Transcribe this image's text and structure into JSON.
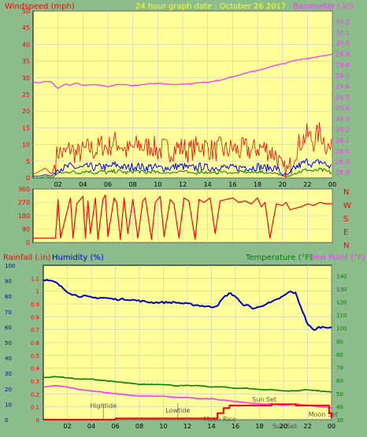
{
  "colors": {
    "page_bg": "#8cbb8c",
    "plot_bg": "#ffff99",
    "grid": "#c8c8c8",
    "wind_speed": "#ff0000",
    "wind_avg": "#0000ff",
    "wind_low": "#008000",
    "barometer": "#ff33ff",
    "direction": "#ff0000",
    "humidity": "#0000cc",
    "temperature": "#008000",
    "dewpoint": "#ff33ff",
    "rainfall": "#ff0000",
    "left_axis_label": "#ff0000",
    "title": "#ffff33",
    "humidity_label": "#0000cc",
    "temp_label": "#008000",
    "dew_label": "#ff33ff",
    "tide_text": "#555555"
  },
  "panels": {
    "wind": {
      "left_label": "Windspeed (mph)",
      "title": "24 hour graph date : October 26 2017",
      "right_label": "Barometer (.in)"
    },
    "direction": {
      "compass": [
        "N",
        "W",
        "S",
        "E",
        "N"
      ]
    },
    "climate": {
      "rain_label": "Rainfall (.in)",
      "humidity_label": "Humidity (%)",
      "temp_label": "Temperature (°F)",
      "dew_label": "Dew Point (°F)",
      "events": [
        {
          "label": "Hightide",
          "hour": 5.0
        },
        {
          "label": "Lowtide",
          "hour": 11.2
        },
        {
          "label": "Moon Rise",
          "hour": 14.7
        },
        {
          "label": "Sun Set",
          "hour": 18.4
        },
        {
          "label": "Moon Set",
          "hour": 23.3
        },
        {
          "label": "Sun Set",
          "hour": 20.1
        }
      ]
    }
  },
  "chart_data": [
    {
      "type": "line",
      "title": "24 hour graph date : October 26 2017",
      "xlabel": "",
      "ylabel": "Windspeed (mph)",
      "y2label": "Barometer (.in)",
      "xlim": [
        0,
        24
      ],
      "x_ticks": [
        "02",
        "04",
        "06",
        "08",
        "10",
        "12",
        "14",
        "16",
        "18",
        "20",
        "22",
        "00"
      ],
      "ylim": [
        0,
        50
      ],
      "y_ticks": [
        0,
        5,
        10,
        15,
        20,
        25,
        30,
        35,
        40,
        45,
        50
      ],
      "y2lim": [
        28.75,
        30.3
      ],
      "y2_ticks": [
        28.8,
        28.9,
        29.0,
        29.1,
        29.2,
        29.3,
        29.4,
        29.5,
        29.6,
        29.7,
        29.8,
        29.9,
        30.0,
        30.1,
        30.2
      ],
      "grid": true,
      "series": [
        {
          "name": "Wind gust (mph)",
          "x": [
            0,
            0.5,
            1,
            1.5,
            2,
            2.5,
            3,
            3.5,
            4,
            4.5,
            5,
            5.5,
            6,
            6.5,
            7,
            7.5,
            8,
            8.5,
            9,
            9.5,
            10,
            10.5,
            11,
            11.5,
            12,
            12.5,
            13,
            13.5,
            14,
            14.5,
            15,
            15.5,
            16,
            16.5,
            17,
            17.5,
            18,
            18.5,
            19,
            19.5,
            20,
            20.5,
            21,
            21.5,
            22,
            22.5,
            23,
            23.5,
            24
          ],
          "values": [
            1,
            2,
            3,
            1,
            8,
            7,
            9,
            7,
            8,
            9,
            8,
            10,
            9,
            11,
            10,
            8,
            9,
            10,
            9,
            10,
            8,
            9,
            8,
            9,
            9,
            8,
            9,
            10,
            9,
            8,
            9,
            8,
            9,
            8,
            9,
            8,
            9,
            9,
            8,
            7,
            2,
            2,
            8,
            11,
            13,
            11,
            14,
            10,
            8
          ]
        },
        {
          "name": "Wind average (mph)",
          "x": [
            0,
            0.5,
            1,
            1.5,
            2,
            2.5,
            3,
            3.5,
            4,
            4.5,
            5,
            5.5,
            6,
            6.5,
            7,
            7.5,
            8,
            8.5,
            9,
            9.5,
            10,
            10.5,
            11,
            11.5,
            12,
            12.5,
            13,
            13.5,
            14,
            14.5,
            15,
            15.5,
            16,
            16.5,
            17,
            17.5,
            18,
            18.5,
            19,
            19.5,
            20,
            20.5,
            21,
            21.5,
            22,
            22.5,
            23,
            23.5,
            24
          ],
          "values": [
            0.5,
            0.5,
            1,
            0.5,
            3,
            3,
            3.5,
            3,
            3,
            3.5,
            3,
            3.5,
            3,
            4,
            3.5,
            3,
            3.5,
            3.5,
            3,
            3.5,
            3,
            3,
            3,
            3.5,
            3.5,
            3,
            3,
            3.5,
            3,
            3,
            3.5,
            3,
            3,
            3,
            3.5,
            3,
            3.5,
            3,
            3,
            3,
            1,
            1,
            3,
            4,
            5,
            4,
            5,
            4,
            3
          ]
        },
        {
          "name": "Wind low (mph)",
          "x": [
            0,
            0.5,
            1,
            1.5,
            2,
            2.5,
            3,
            3.5,
            4,
            4.5,
            5,
            5.5,
            6,
            6.5,
            7,
            7.5,
            8,
            8.5,
            9,
            9.5,
            10,
            10.5,
            11,
            11.5,
            12,
            12.5,
            13,
            13.5,
            14,
            14.5,
            15,
            15.5,
            16,
            16.5,
            17,
            17.5,
            18,
            18.5,
            19,
            19.5,
            20,
            20.5,
            21,
            21.5,
            22,
            22.5,
            23,
            23.5,
            24
          ],
          "values": [
            0,
            0,
            0.5,
            0,
            1.5,
            1.5,
            2,
            1.5,
            2,
            2,
            1.5,
            2,
            1.5,
            2,
            2,
            1.5,
            2,
            2,
            1.5,
            2,
            1.5,
            1.5,
            1.5,
            2,
            2,
            1.5,
            1.5,
            2,
            1.5,
            1.5,
            2,
            1.5,
            1.5,
            1.5,
            2,
            1.5,
            2,
            1.5,
            1.5,
            1.5,
            0.5,
            0.5,
            1.5,
            2,
            2.5,
            2,
            2.5,
            2,
            1.5
          ]
        },
        {
          "name": "Barometer (.in)",
          "axis": "right",
          "x": [
            0,
            0.5,
            1,
            1.5,
            2,
            2.5,
            3,
            3.5,
            4,
            5,
            6,
            7,
            8,
            9,
            10,
            11,
            12,
            13,
            14,
            15,
            16,
            17,
            18,
            19,
            20,
            21,
            22,
            23,
            24
          ],
          "values": [
            29.64,
            29.63,
            29.65,
            29.64,
            29.58,
            29.62,
            29.61,
            29.63,
            29.61,
            29.62,
            29.6,
            29.62,
            29.61,
            29.62,
            29.63,
            29.62,
            29.62,
            29.63,
            29.64,
            29.66,
            29.69,
            29.72,
            29.75,
            29.78,
            29.81,
            29.84,
            29.86,
            29.88,
            29.9
          ]
        }
      ]
    },
    {
      "type": "line",
      "ylabel": "Wind direction",
      "xlim": [
        0,
        24
      ],
      "ylim": [
        0,
        360
      ],
      "y_ticks": [
        0,
        90,
        180,
        270,
        360
      ],
      "grid": true,
      "series": [
        {
          "name": "Wind direction (°)",
          "x": [
            0,
            1.8,
            2.0,
            2.2,
            3.0,
            3.2,
            3.5,
            4.0,
            4.2,
            4.4,
            4.6,
            5.0,
            5.2,
            5.6,
            5.8,
            6.0,
            6.5,
            6.7,
            7.0,
            7.3,
            7.6,
            8.0,
            8.4,
            8.8,
            9.0,
            9.5,
            9.8,
            10.2,
            10.5,
            11.0,
            11.3,
            11.7,
            12.1,
            12.5,
            13.0,
            13.3,
            13.7,
            14.2,
            14.6,
            15.0,
            15.5,
            16.0,
            16.5,
            17.0,
            17.5,
            18.0,
            18.3,
            18.6,
            19.0,
            19.5,
            20.0,
            20.3,
            20.6,
            21.0,
            21.5,
            22.0,
            22.5,
            23.0,
            23.5,
            24.0
          ],
          "values": [
            30,
            30,
            290,
            30,
            300,
            30,
            260,
            310,
            30,
            280,
            60,
            300,
            20,
            290,
            320,
            40,
            300,
            270,
            20,
            300,
            60,
            290,
            30,
            280,
            300,
            20,
            270,
            310,
            40,
            290,
            260,
            30,
            300,
            280,
            20,
            290,
            270,
            300,
            60,
            280,
            290,
            300,
            270,
            280,
            260,
            300,
            240,
            270,
            30,
            260,
            250,
            270,
            220,
            230,
            240,
            260,
            250,
            270,
            260,
            260
          ]
        }
      ]
    },
    {
      "type": "line",
      "ylabel": "Rainfall (.in)",
      "y_right_label": "Temperature (°F)",
      "xlim": [
        0,
        24
      ],
      "x_ticks": [
        "02",
        "04",
        "06",
        "08",
        "10",
        "12",
        "14",
        "16",
        "18",
        "20",
        "22",
        "00"
      ],
      "ylim": [
        0,
        1.2
      ],
      "y_ticks": [
        0,
        0.1,
        0.2,
        0.3,
        0.4,
        0.5,
        0.6,
        0.7,
        0.8,
        0.9,
        1.0,
        1.1
      ],
      "y_outer_lim": [
        0,
        100
      ],
      "y_outer_ticks": [
        0,
        10,
        20,
        30,
        40,
        50,
        60,
        70,
        80,
        90,
        100
      ],
      "y2lim": [
        30,
        148
      ],
      "y2_ticks": [
        30,
        40,
        50,
        60,
        70,
        80,
        90,
        100,
        110,
        120,
        130,
        140
      ],
      "grid": true,
      "series": [
        {
          "name": "Humidity (%)",
          "axis": "outer",
          "x": [
            0,
            0.5,
            1,
            1.5,
            2,
            2.5,
            3,
            3.5,
            4,
            5,
            6,
            7,
            8,
            9,
            10,
            11,
            12,
            13,
            14,
            14.5,
            15,
            15.5,
            16,
            16.5,
            17,
            17.5,
            18,
            18.5,
            19,
            19.5,
            20,
            20.5,
            21,
            21.5,
            22,
            22.5,
            23,
            23.5,
            24
          ],
          "values": [
            91,
            90,
            89,
            86,
            83,
            81,
            80,
            80,
            79,
            79,
            78,
            78,
            77,
            76,
            76,
            76,
            75,
            74,
            73,
            74,
            79,
            82,
            80,
            75,
            74,
            72,
            73,
            75,
            76,
            78,
            80,
            83,
            82,
            72,
            62,
            58,
            60,
            60,
            60
          ]
        },
        {
          "name": "Temperature (°F)",
          "axis": "right",
          "x": [
            0,
            1,
            2,
            3,
            4,
            5,
            6,
            7,
            8,
            9,
            10,
            11,
            12,
            13,
            14,
            15,
            16,
            17,
            18,
            19,
            20,
            21,
            22,
            23,
            24
          ],
          "values": [
            62,
            63,
            62,
            61,
            61,
            60,
            59,
            58,
            57,
            57,
            57,
            56,
            56,
            56,
            55,
            55,
            54,
            54,
            53,
            53,
            52,
            52,
            53,
            52,
            51
          ]
        },
        {
          "name": "Dew Point (°F)",
          "axis": "right",
          "x": [
            0,
            1,
            2,
            3,
            4,
            5,
            6,
            7,
            8,
            9,
            10,
            11,
            12,
            13,
            14,
            15,
            16,
            17,
            18,
            19,
            20,
            21,
            22,
            23,
            24
          ],
          "values": [
            55,
            56,
            55,
            53,
            52,
            51,
            50,
            49,
            48,
            48,
            48,
            47,
            47,
            46,
            46,
            45,
            44,
            43,
            42,
            42,
            41,
            42,
            41,
            40,
            39
          ]
        },
        {
          "name": "Rainfall (.in)",
          "axis": "left",
          "x": [
            0,
            2,
            4,
            6,
            7,
            8,
            10,
            12,
            14,
            14.5,
            15,
            15.5,
            16,
            18,
            18.5,
            19,
            20,
            21,
            22,
            23,
            23.5,
            23.8,
            24
          ],
          "values": [
            0,
            0,
            0,
            0.01,
            0.01,
            0.01,
            0.01,
            0.01,
            0.01,
            0.05,
            0.09,
            0.11,
            0.11,
            0.11,
            0.11,
            0.12,
            0.12,
            0.11,
            0.11,
            0.11,
            0.11,
            0.05,
            0.01
          ]
        }
      ]
    }
  ]
}
